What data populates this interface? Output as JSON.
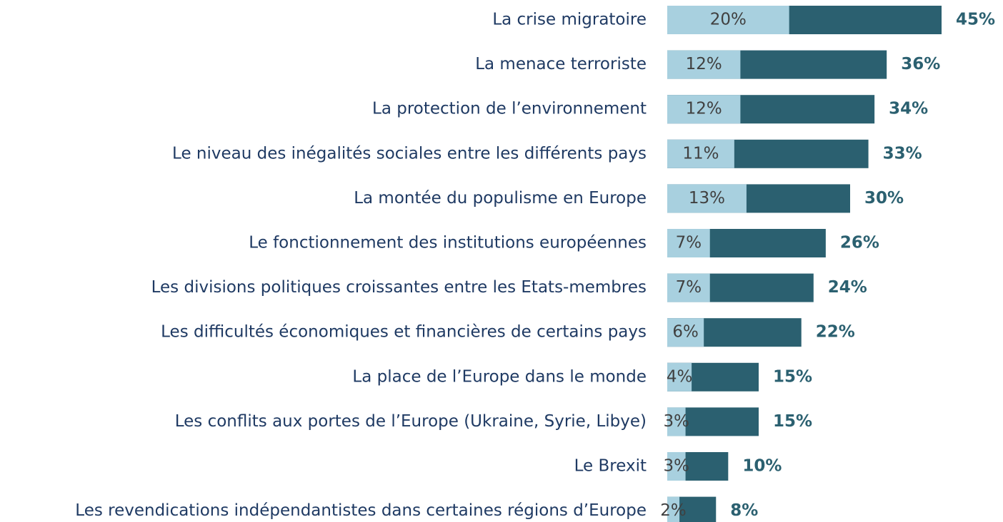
{
  "chart_data": {
    "type": "overlay-bar",
    "categories": [
      "La crise migratoire",
      "La menace terroriste",
      "La protection de l’environnement",
      "Le niveau des inégalités sociales entre les différents pays",
      "La montée du populisme en Europe",
      "Le fonctionnement des institutions européennes",
      "Les divisions politiques croissantes entre les Etats-membres",
      "Les difficultés économiques et financières de certains pays",
      "La place de l’Europe dans le monde",
      "Les conflits aux portes de l’Europe (Ukraine, Syrie, Libye)",
      "Le Brexit",
      "Les revendications indépendantistes dans certaines régions d’Europe"
    ],
    "series": [
      {
        "color": "#2b6070",
        "values": [
          45,
          36,
          34,
          33,
          30,
          26,
          24,
          22,
          15,
          15,
          10,
          8
        ],
        "value_labels": [
          "45%",
          "36%",
          "34%",
          "33%",
          "30%",
          "26%",
          "24%",
          "22%",
          "15%",
          "15%",
          "10%",
          "8%"
        ]
      },
      {
        "color": "#a8d0df",
        "values": [
          20,
          12,
          12,
          11,
          13,
          7,
          7,
          6,
          4,
          3,
          3,
          2
        ],
        "value_labels": [
          "20%",
          "12%",
          "12%",
          "11%",
          "13%",
          "7%",
          "7%",
          "6%",
          "4%",
          "3%",
          "3%",
          "2%"
        ]
      }
    ],
    "xlim": [
      0,
      45
    ]
  }
}
